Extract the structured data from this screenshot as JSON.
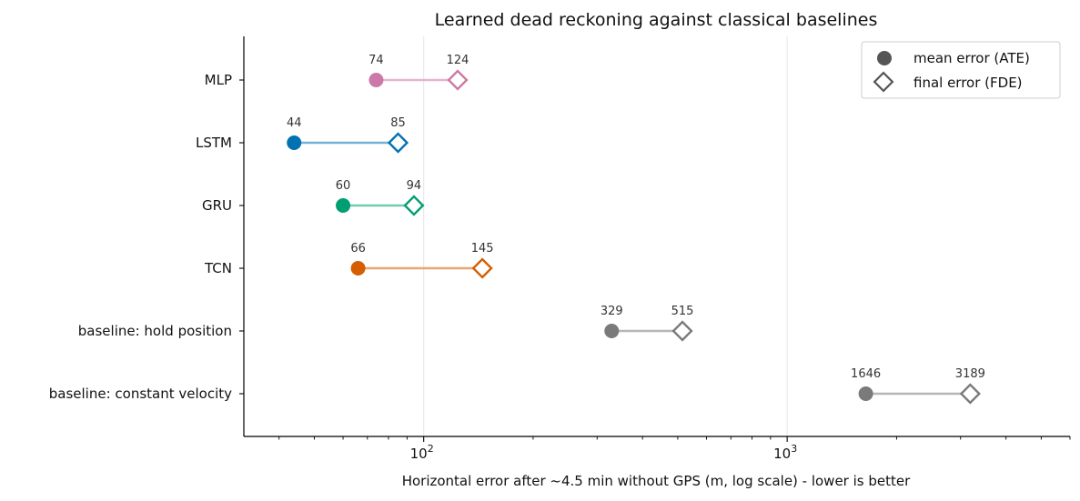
{
  "chart_data": {
    "type": "dumbbell",
    "title": "Learned dead reckoning against classical baselines",
    "xlabel": "Horizontal error after ~4.5 min without GPS (m, log scale) - lower is better",
    "ylabel": "",
    "xscale": "log",
    "xlim": [
      32,
      6000
    ],
    "x_ticks": [
      {
        "value": 100,
        "base": "10",
        "exp": "2"
      },
      {
        "value": 1000,
        "base": "10",
        "exp": "3"
      }
    ],
    "grid": "vertical major",
    "legend_position": "top-right",
    "legend": [
      {
        "label": "mean error (ATE)",
        "marker": "circle"
      },
      {
        "label": "final error (FDE)",
        "marker": "open-diamond"
      }
    ],
    "categories": [
      "MLP",
      "LSTM",
      "GRU",
      "TCN",
      "baseline: hold position",
      "baseline: constant velocity"
    ],
    "ate": [
      74,
      44,
      60,
      66,
      329,
      1646
    ],
    "fde": [
      124,
      85,
      94,
      145,
      515,
      3189
    ],
    "ate_labels": [
      "74",
      "44",
      "60",
      "66",
      "329",
      "1646"
    ],
    "fde_labels": [
      "124",
      "85",
      "94",
      "145",
      "515",
      "3189"
    ],
    "colors": [
      "#CC79A7",
      "#0072B2",
      "#009E73",
      "#D55E00",
      "#7A7A7A",
      "#7A7A7A"
    ]
  }
}
